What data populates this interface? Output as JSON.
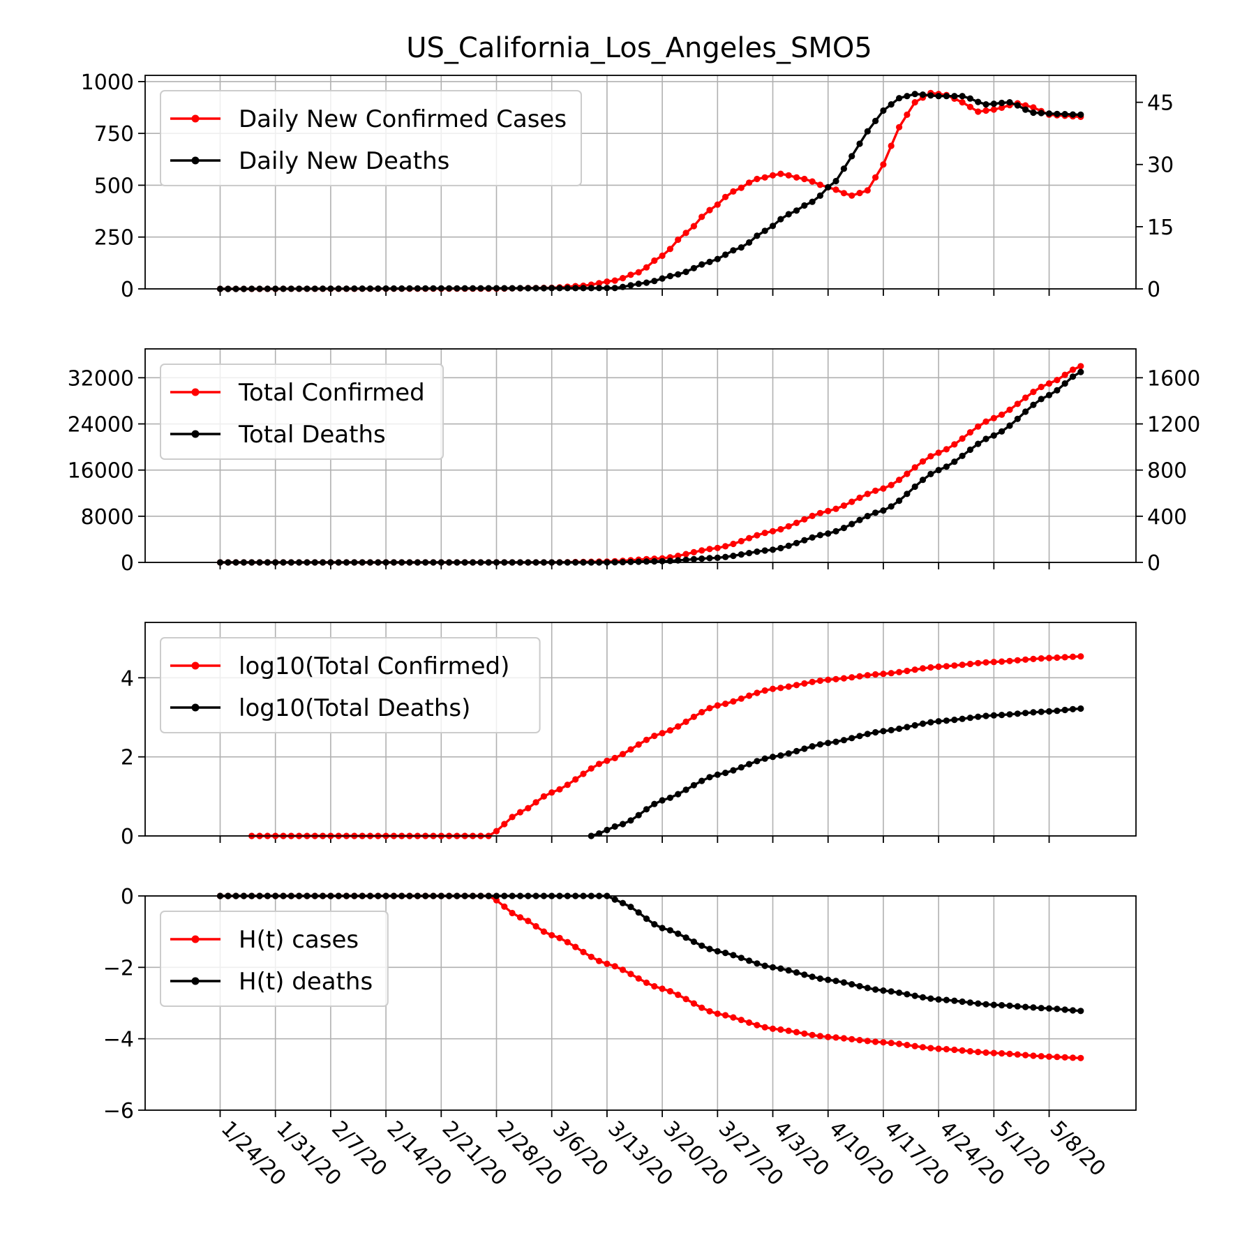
{
  "title": "US_California_Los_Angeles_SMO5",
  "chart_data": [
    {
      "type": "line",
      "panel": "daily",
      "x_dates": {
        "start": "1/24/20",
        "end": "5/12/20"
      },
      "x_tick_labels": [
        "1/24/20",
        "1/31/20",
        "2/7/20",
        "2/14/20",
        "2/21/20",
        "2/28/20",
        "3/6/20",
        "3/13/20",
        "3/20/20",
        "3/27/20",
        "4/3/20",
        "4/10/20",
        "4/17/20",
        "4/24/20",
        "5/1/20",
        "5/8/20"
      ],
      "ylim": [
        0,
        1030
      ],
      "y_ticks": [
        0,
        250,
        500,
        750,
        1000
      ],
      "y2lim": [
        0,
        51.5
      ],
      "y2_ticks": [
        0,
        15,
        30,
        45
      ],
      "legend": "top-left",
      "grid": true,
      "series": [
        {
          "name": "Daily New Confirmed Cases",
          "color": "#ff0000",
          "axis": "left",
          "points": [
            [
              "1/24/20",
              0
            ],
            [
              "2/27/20",
              1
            ],
            [
              "3/6/20",
              5
            ],
            [
              "3/10/20",
              15
            ],
            [
              "3/14/20",
              40
            ],
            [
              "3/17/20",
              80
            ],
            [
              "3/20/20",
              160
            ],
            [
              "3/23/20",
              270
            ],
            [
              "3/26/20",
              380
            ],
            [
              "3/29/20",
              470
            ],
            [
              "4/1/20",
              530
            ],
            [
              "4/4/20",
              555
            ],
            [
              "4/7/20",
              530
            ],
            [
              "4/10/20",
              490
            ],
            [
              "4/13/20",
              450
            ],
            [
              "4/15/20",
              475
            ],
            [
              "4/17/20",
              600
            ],
            [
              "4/19/20",
              780
            ],
            [
              "4/21/20",
              900
            ],
            [
              "4/23/20",
              945
            ],
            [
              "4/25/20",
              935
            ],
            [
              "4/27/20",
              900
            ],
            [
              "4/29/20",
              855
            ],
            [
              "5/1/20",
              865
            ],
            [
              "5/4/20",
              895
            ],
            [
              "5/6/20",
              875
            ],
            [
              "5/8/20",
              840
            ],
            [
              "5/10/20",
              835
            ],
            [
              "5/12/20",
              830
            ]
          ]
        },
        {
          "name": "Daily New Deaths",
          "color": "#000000",
          "axis": "right",
          "points": [
            [
              "1/24/20",
              0
            ],
            [
              "3/14/20",
              0.2
            ],
            [
              "3/18/20",
              1.5
            ],
            [
              "3/22/20",
              3.5
            ],
            [
              "3/26/20",
              6.5
            ],
            [
              "3/30/20",
              10
            ],
            [
              "4/2/20",
              14
            ],
            [
              "4/5/20",
              18
            ],
            [
              "4/8/20",
              21
            ],
            [
              "4/11/20",
              26
            ],
            [
              "4/13/20",
              32
            ],
            [
              "4/15/20",
              38
            ],
            [
              "4/17/20",
              43
            ],
            [
              "4/19/20",
              46
            ],
            [
              "4/21/20",
              47
            ],
            [
              "4/24/20",
              46.5
            ],
            [
              "4/27/20",
              46.5
            ],
            [
              "4/30/20",
              44.5
            ],
            [
              "5/3/20",
              45
            ],
            [
              "5/6/20",
              42.5
            ],
            [
              "5/9/20",
              42.2
            ],
            [
              "5/12/20",
              42
            ]
          ]
        }
      ]
    },
    {
      "type": "line",
      "panel": "total",
      "ylim": [
        0,
        37000
      ],
      "y_ticks": [
        0,
        8000,
        16000,
        24000,
        32000
      ],
      "y2lim": [
        0,
        1850
      ],
      "y2_ticks": [
        0,
        400,
        800,
        1200,
        1600
      ],
      "legend": "top-left",
      "grid": true,
      "series": [
        {
          "name": "Total Confirmed",
          "color": "#ff0000",
          "axis": "left",
          "points": [
            [
              "1/24/20",
              0
            ],
            [
              "3/6/20",
              0
            ],
            [
              "3/13/20",
              150
            ],
            [
              "3/20/20",
              700
            ],
            [
              "3/27/20",
              2500
            ],
            [
              "4/3/20",
              5400
            ],
            [
              "4/10/20",
              8900
            ],
            [
              "4/17/20",
              12800
            ],
            [
              "4/24/20",
              19000
            ],
            [
              "5/1/20",
              25000
            ],
            [
              "5/8/20",
              31000
            ],
            [
              "5/12/20",
              34000
            ]
          ]
        },
        {
          "name": "Total Deaths",
          "color": "#000000",
          "axis": "right",
          "points": [
            [
              "1/24/20",
              0
            ],
            [
              "3/13/20",
              0
            ],
            [
              "3/20/20",
              10
            ],
            [
              "3/27/20",
              40
            ],
            [
              "4/3/20",
              110
            ],
            [
              "4/10/20",
              250
            ],
            [
              "4/17/20",
              450
            ],
            [
              "4/24/20",
              800
            ],
            [
              "5/1/20",
              1100
            ],
            [
              "5/8/20",
              1450
            ],
            [
              "5/12/20",
              1650
            ]
          ]
        }
      ]
    },
    {
      "type": "line",
      "panel": "log",
      "ylim": [
        0,
        5.4
      ],
      "y_ticks": [
        0,
        2,
        4
      ],
      "legend": "top-left",
      "grid": true,
      "series": [
        {
          "name": "log10(Total Confirmed)",
          "color": "#ff0000",
          "points": [
            [
              "1/24/20",
              null
            ],
            [
              "1/28/20",
              0
            ],
            [
              "2/27/20",
              0
            ],
            [
              "3/2/20",
              0.6
            ],
            [
              "3/6/20",
              1.1
            ],
            [
              "3/13/20",
              1.9
            ],
            [
              "3/20/20",
              2.6
            ],
            [
              "3/27/20",
              3.3
            ],
            [
              "4/3/20",
              3.72
            ],
            [
              "4/10/20",
              3.95
            ],
            [
              "4/17/20",
              4.1
            ],
            [
              "4/24/20",
              4.28
            ],
            [
              "5/1/20",
              4.4
            ],
            [
              "5/8/20",
              4.5
            ],
            [
              "5/12/20",
              4.54
            ]
          ]
        },
        {
          "name": "log10(Total Deaths)",
          "color": "#000000",
          "points": [
            [
              "1/24/20",
              null
            ],
            [
              "3/11/20",
              0
            ],
            [
              "3/15/20",
              0.3
            ],
            [
              "3/20/20",
              0.9
            ],
            [
              "3/27/20",
              1.55
            ],
            [
              "4/3/20",
              2.0
            ],
            [
              "4/10/20",
              2.35
            ],
            [
              "4/17/20",
              2.65
            ],
            [
              "4/24/20",
              2.9
            ],
            [
              "5/1/20",
              3.05
            ],
            [
              "5/8/20",
              3.15
            ],
            [
              "5/12/20",
              3.22
            ]
          ]
        }
      ]
    },
    {
      "type": "line",
      "panel": "H",
      "ylim": [
        -6,
        0
      ],
      "y_ticks": [
        -6,
        -4,
        -2,
        0
      ],
      "legend": "top-left",
      "grid": true,
      "series": [
        {
          "name": "H(t) cases",
          "color": "#ff0000",
          "points": [
            [
              "1/24/20",
              0
            ],
            [
              "2/27/20",
              0
            ],
            [
              "3/2/20",
              -0.6
            ],
            [
              "3/6/20",
              -1.1
            ],
            [
              "3/13/20",
              -1.9
            ],
            [
              "3/20/20",
              -2.6
            ],
            [
              "3/27/20",
              -3.3
            ],
            [
              "4/3/20",
              -3.72
            ],
            [
              "4/10/20",
              -3.95
            ],
            [
              "4/17/20",
              -4.1
            ],
            [
              "4/24/20",
              -4.28
            ],
            [
              "5/1/20",
              -4.4
            ],
            [
              "5/8/20",
              -4.5
            ],
            [
              "5/12/20",
              -4.54
            ]
          ]
        },
        {
          "name": "H(t) deaths",
          "color": "#000000",
          "points": [
            [
              "1/24/20",
              0
            ],
            [
              "3/13/20",
              0
            ],
            [
              "3/15/20",
              -0.2
            ],
            [
              "3/20/20",
              -0.9
            ],
            [
              "3/27/20",
              -1.55
            ],
            [
              "4/3/20",
              -2.0
            ],
            [
              "4/10/20",
              -2.35
            ],
            [
              "4/17/20",
              -2.65
            ],
            [
              "4/24/20",
              -2.9
            ],
            [
              "5/1/20",
              -3.05
            ],
            [
              "5/8/20",
              -3.15
            ],
            [
              "5/12/20",
              -3.22
            ]
          ]
        }
      ]
    }
  ]
}
